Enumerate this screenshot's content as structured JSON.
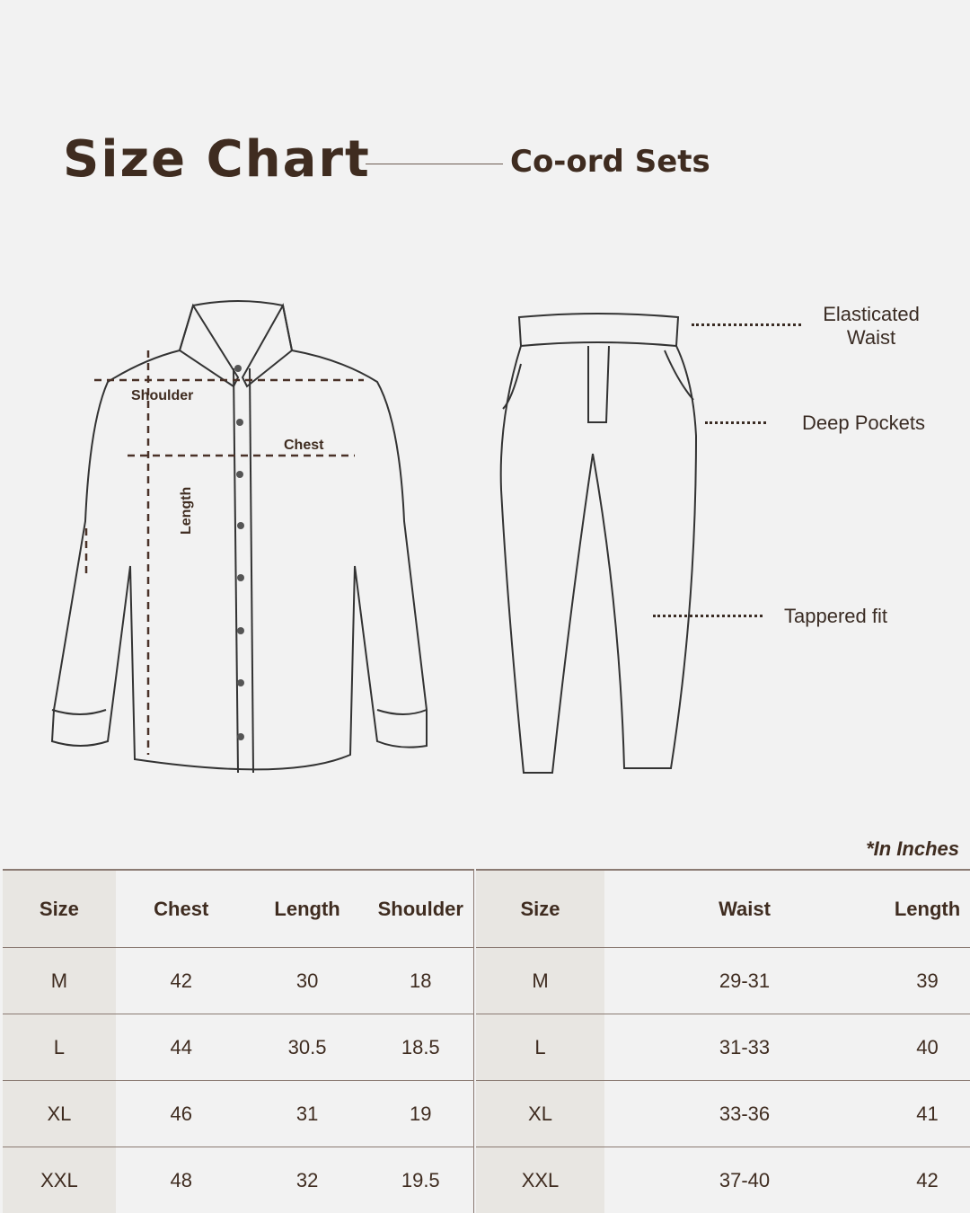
{
  "header": {
    "title": "Size Chart",
    "subtitle": "Co-ord Sets"
  },
  "shirt_labels": {
    "shoulder": "Shoulder",
    "chest": "Chest",
    "length": "Length"
  },
  "pant_features": {
    "waist_line1": "Elasticated",
    "waist_line2": "Waist",
    "pockets": "Deep Pockets",
    "fit": "Tappered fit"
  },
  "unit_note": "*In Inches",
  "shirt_table": {
    "headers": [
      "Size",
      "Chest",
      "Length",
      "Shoulder"
    ],
    "rows": [
      [
        "M",
        "42",
        "30",
        "18"
      ],
      [
        "L",
        "44",
        "30.5",
        "18.5"
      ],
      [
        "XL",
        "46",
        "31",
        "19"
      ],
      [
        "XXL",
        "48",
        "32",
        "19.5"
      ]
    ]
  },
  "pant_table": {
    "headers": [
      "Size",
      "Waist",
      "Length"
    ],
    "rows": [
      [
        "M",
        "29-31",
        "39"
      ],
      [
        "L",
        "31-33",
        "40"
      ],
      [
        "XL",
        "33-36",
        "41"
      ],
      [
        "XXL",
        "37-40",
        "42"
      ]
    ]
  },
  "colors": {
    "text": "#3f2c20",
    "background": "#f2f2f2",
    "shade": "#e8e6e2"
  }
}
